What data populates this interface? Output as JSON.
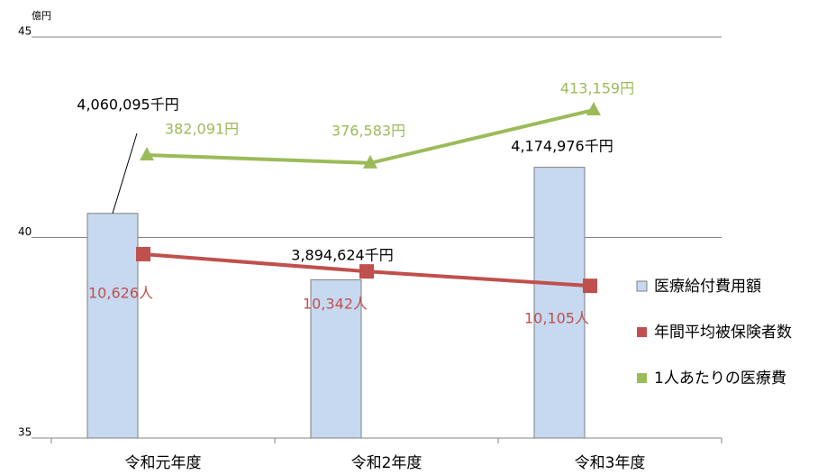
{
  "chart_data": {
    "type": "bar",
    "y_unit_label": "億円",
    "categories": [
      "令和元年度",
      "令和2年度",
      "令和3年度"
    ],
    "ylim": [
      35,
      45
    ],
    "yticks": [
      35,
      40,
      45
    ],
    "y2lim": [
      7600,
      14200
    ],
    "y3lim": [
      187000,
      463500
    ],
    "grid": true,
    "legend": "right",
    "series": [
      {
        "name": "医療給付費用額",
        "type": "bar",
        "color": "#c6d9f1",
        "values": [
          40.60095,
          38.94624,
          41.74976
        ],
        "value_labels": [
          "4,060,095千円",
          "3,894,624千円",
          "4,174,976千円"
        ]
      },
      {
        "name": "年間平均被保険者数",
        "type": "line",
        "axis": "y2",
        "marker": "square",
        "color": "#c0504d",
        "values": [
          10626,
          10342,
          10105
        ],
        "value_labels": [
          "10,626人",
          "10,342人",
          "10,105人"
        ]
      },
      {
        "name": "1人あたりの医療費",
        "type": "line",
        "axis": "y3",
        "marker": "triangle",
        "color": "#9bbb59",
        "values": [
          382091,
          376583,
          413159
        ],
        "value_labels": [
          "382,091円",
          "376,583円",
          "413,159円"
        ]
      }
    ]
  }
}
